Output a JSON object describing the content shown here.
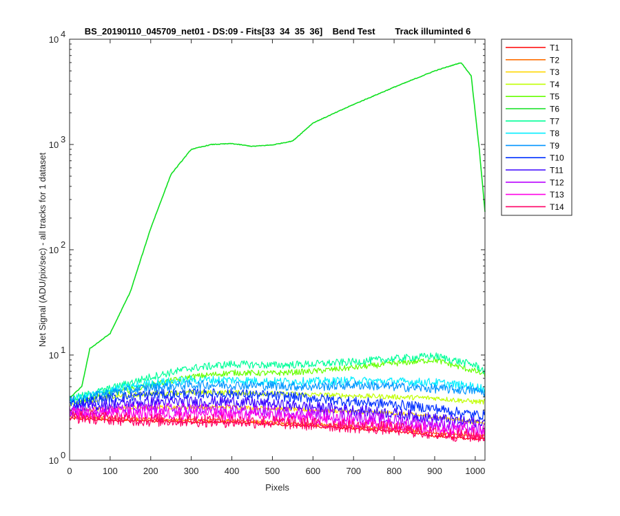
{
  "chart_data": {
    "type": "line",
    "title": "BS_20190110_045709_net01 - DS:09 - Fits[33  34  35  36]    Bend Test        Track illuminted 6",
    "xlabel": "Pixels",
    "ylabel": "Net Signal (ADU/pix/sec) - all tracks for 1 dataset",
    "xlim": [
      0,
      1024
    ],
    "ylim": [
      1,
      10000
    ],
    "yscale": "log",
    "x_ticks": [
      "0",
      "100",
      "200",
      "300",
      "400",
      "500",
      "600",
      "700",
      "800",
      "900",
      "1000"
    ],
    "y_tick_mantissa": "10",
    "y_tick_exponents": [
      "0",
      "1",
      "2",
      "3",
      "4"
    ],
    "grid": false,
    "legend_position": "outside-top-right",
    "series": [
      {
        "name": "T1",
        "color": "#ff0000",
        "x": [
          0,
          100,
          200,
          300,
          400,
          500,
          600,
          700,
          800,
          900,
          1000,
          1024
        ],
        "y": [
          2.5,
          2.4,
          2.35,
          2.3,
          2.3,
          2.2,
          2.1,
          2.0,
          1.9,
          1.7,
          1.6,
          1.6
        ]
      },
      {
        "name": "T2",
        "color": "#ff6e00",
        "x": [
          0,
          100,
          200,
          300,
          400,
          500,
          600,
          700,
          800,
          900,
          1000,
          1024
        ],
        "y": [
          2.6,
          2.5,
          2.45,
          2.4,
          2.4,
          2.3,
          2.2,
          2.1,
          2.0,
          1.8,
          1.7,
          1.7
        ]
      },
      {
        "name": "T3",
        "color": "#ffd700",
        "x": [
          0,
          100,
          200,
          300,
          400,
          500,
          600,
          700,
          800,
          900,
          1000,
          1024
        ],
        "y": [
          3.0,
          3.1,
          3.2,
          3.2,
          3.2,
          3.1,
          3.0,
          2.9,
          2.8,
          2.6,
          2.3,
          2.3
        ]
      },
      {
        "name": "T4",
        "color": "#c0ff00",
        "x": [
          0,
          100,
          200,
          300,
          400,
          500,
          600,
          700,
          800,
          900,
          1000,
          1024
        ],
        "y": [
          3.4,
          4.0,
          4.3,
          4.4,
          4.4,
          4.3,
          4.2,
          4.1,
          4.0,
          3.9,
          3.6,
          3.6
        ]
      },
      {
        "name": "T5",
        "color": "#66ff00",
        "x": [
          0,
          100,
          200,
          300,
          400,
          500,
          600,
          700,
          800,
          900,
          1000,
          1024
        ],
        "y": [
          3.6,
          4.3,
          5.2,
          6.2,
          6.8,
          6.7,
          7.0,
          7.6,
          8.3,
          9.0,
          7.0,
          6.5
        ]
      },
      {
        "name": "T6",
        "color": "#0fe01f",
        "x": [
          0,
          30,
          50,
          100,
          150,
          200,
          250,
          300,
          350,
          400,
          450,
          500,
          550,
          600,
          700,
          800,
          900,
          965,
          990,
          1010,
          1024
        ],
        "y": [
          3.9,
          5.0,
          11.5,
          16,
          40,
          160,
          520,
          900,
          1000,
          1020,
          960,
          990,
          1080,
          1600,
          2400,
          3500,
          5000,
          6000,
          4500,
          900,
          230
        ]
      },
      {
        "name": "T7",
        "color": "#00ff99",
        "x": [
          0,
          100,
          200,
          300,
          400,
          500,
          600,
          700,
          800,
          900,
          1000,
          1024
        ],
        "y": [
          3.8,
          4.8,
          6.2,
          7.5,
          8.2,
          8.0,
          8.2,
          8.6,
          9.2,
          9.8,
          8.0,
          7.0
        ]
      },
      {
        "name": "T8",
        "color": "#00eeff",
        "x": [
          0,
          100,
          200,
          300,
          400,
          500,
          600,
          700,
          800,
          900,
          1000,
          1024
        ],
        "y": [
          3.7,
          4.6,
          5.4,
          5.8,
          5.8,
          5.6,
          5.6,
          5.7,
          5.6,
          5.5,
          5.0,
          4.8
        ]
      },
      {
        "name": "T9",
        "color": "#0094ff",
        "x": [
          0,
          100,
          200,
          300,
          400,
          500,
          600,
          700,
          800,
          900,
          1000,
          1024
        ],
        "y": [
          3.6,
          4.4,
          4.9,
          5.2,
          5.2,
          5.1,
          5.0,
          5.2,
          5.0,
          4.8,
          4.6,
          4.4
        ]
      },
      {
        "name": "T10",
        "color": "#0030ff",
        "x": [
          0,
          100,
          200,
          300,
          400,
          500,
          600,
          700,
          800,
          900,
          1000,
          1024
        ],
        "y": [
          3.4,
          3.9,
          4.2,
          4.3,
          4.3,
          4.1,
          3.9,
          3.6,
          3.4,
          3.1,
          2.7,
          2.7
        ]
      },
      {
        "name": "T11",
        "color": "#3a00ff",
        "x": [
          0,
          100,
          200,
          300,
          400,
          500,
          600,
          700,
          800,
          900,
          1000,
          1024
        ],
        "y": [
          3.1,
          3.4,
          3.6,
          3.6,
          3.6,
          3.4,
          3.2,
          3.0,
          2.8,
          2.5,
          2.3,
          2.3
        ]
      },
      {
        "name": "T12",
        "color": "#b800ff",
        "x": [
          0,
          100,
          200,
          300,
          400,
          500,
          600,
          700,
          800,
          900,
          1000,
          1024
        ],
        "y": [
          2.9,
          3.0,
          3.1,
          3.1,
          3.0,
          2.9,
          2.8,
          2.6,
          2.4,
          2.2,
          2.0,
          2.0
        ]
      },
      {
        "name": "T13",
        "color": "#ff00e6",
        "x": [
          0,
          100,
          200,
          300,
          400,
          500,
          600,
          700,
          800,
          900,
          1000,
          1024
        ],
        "y": [
          2.8,
          2.8,
          2.8,
          2.8,
          2.7,
          2.6,
          2.5,
          2.3,
          2.2,
          2.0,
          1.9,
          1.9
        ]
      },
      {
        "name": "T14",
        "color": "#ff0066",
        "x": [
          0,
          100,
          200,
          300,
          400,
          500,
          600,
          700,
          800,
          900,
          1000,
          1024
        ],
        "y": [
          2.6,
          2.5,
          2.4,
          2.4,
          2.35,
          2.3,
          2.2,
          2.1,
          2.0,
          1.8,
          1.7,
          1.7
        ]
      }
    ]
  }
}
